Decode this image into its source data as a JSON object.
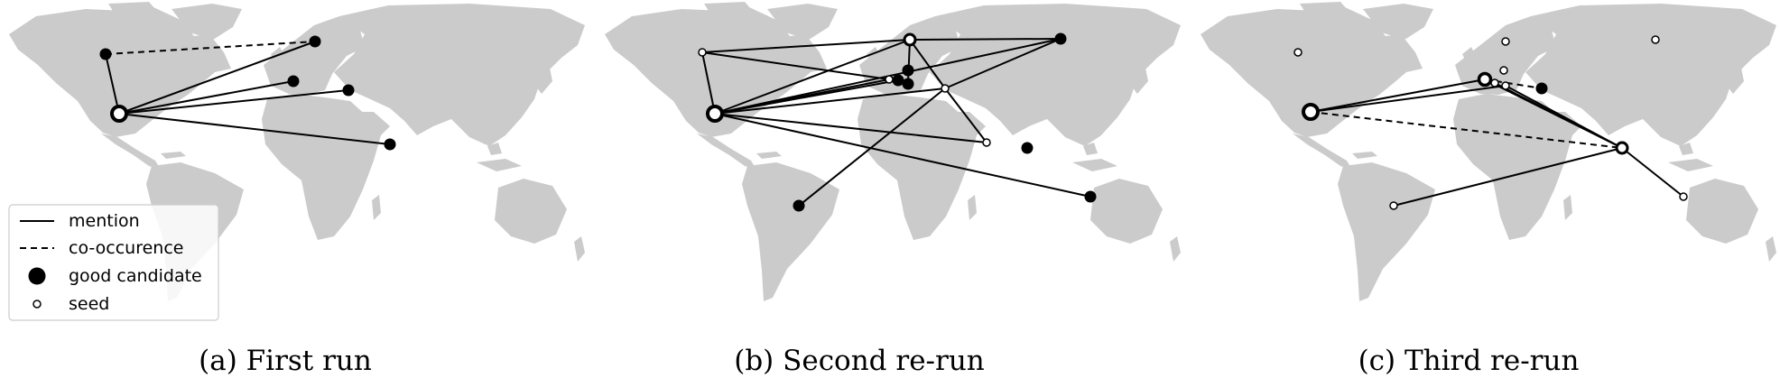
{
  "panels": [
    {
      "caption": "(a) First run"
    },
    {
      "caption": "(b) Second re-run"
    },
    {
      "caption": "(c) Third re-run"
    }
  ],
  "legend": {
    "mention": "mention",
    "co_occurrence": "co-occurence",
    "good_candidate": "good candidate",
    "seed": "seed"
  },
  "colors": {
    "land": "#cbcbcb",
    "edge": "#000000",
    "seed_fill": "#ffffff"
  }
}
